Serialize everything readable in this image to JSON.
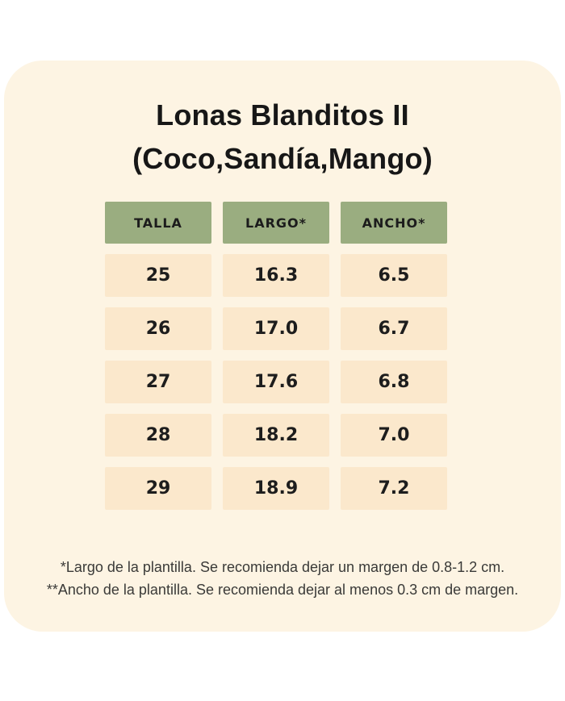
{
  "colors": {
    "page-bg": "#ffffff",
    "card-bg": "#fdf4e3",
    "header-bg": "#9aad80",
    "cell-bg": "#fbe8cc",
    "title-text": "#171717",
    "header-text": "#1c1c1c",
    "cell-text": "#1d1d1d",
    "footnote-text": "#3a3a38"
  },
  "title": {
    "line1": "Lonas Blanditos II",
    "line2": "(Coco,Sandía,Mango)"
  },
  "table": {
    "headers": [
      "TALLA",
      "LARGO*",
      "ANCHO*"
    ],
    "rows": [
      [
        "25",
        "16.3",
        "6.5"
      ],
      [
        "26",
        "17.0",
        "6.7"
      ],
      [
        "27",
        "17.6",
        "6.8"
      ],
      [
        "28",
        "18.2",
        "7.0"
      ],
      [
        "29",
        "18.9",
        "7.2"
      ]
    ]
  },
  "footnotes": {
    "largo": "*Largo de la plantilla. Se recomienda dejar un margen de 0.8-1.2 cm.",
    "ancho": "**Ancho de la plantilla. Se recomienda dejar al menos 0.3 cm de margen."
  },
  "chart_data": {
    "type": "table",
    "title": "Lonas Blanditos II (Coco,Sandía,Mango)",
    "columns": [
      "TALLA",
      "LARGO*",
      "ANCHO*"
    ],
    "rows": [
      [
        25,
        16.3,
        6.5
      ],
      [
        26,
        17.0,
        6.7
      ],
      [
        27,
        17.6,
        6.8
      ],
      [
        28,
        18.2,
        7.0
      ],
      [
        29,
        18.9,
        7.2
      ]
    ],
    "notes": [
      "*Largo de la plantilla. Se recomienda dejar un margen de 0.8-1.2 cm.",
      "**Ancho de la plantilla. Se recomienda dejar al menos 0.3 cm de margen."
    ]
  }
}
